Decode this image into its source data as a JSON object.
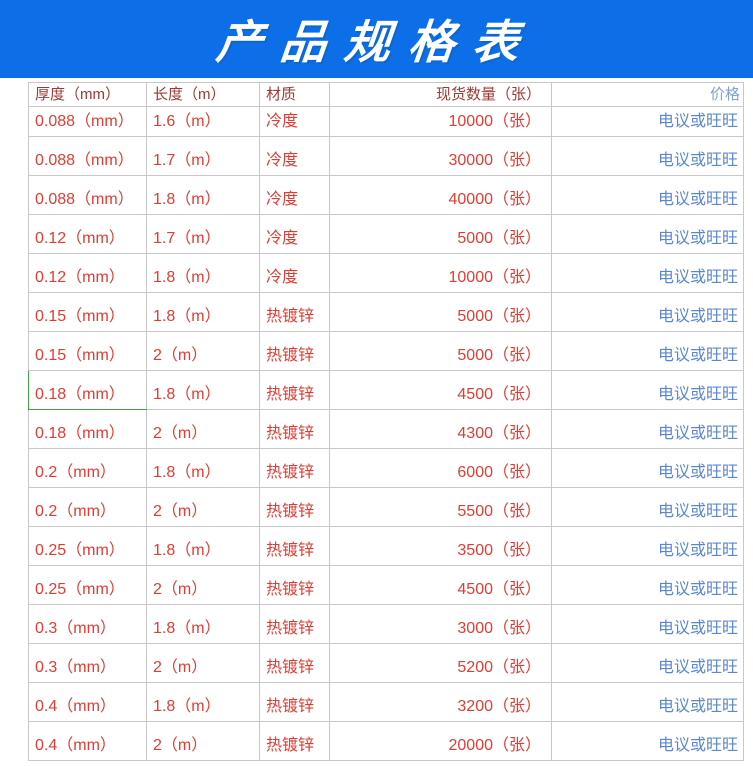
{
  "banner": {
    "title": "产品规格表",
    "bg_color": "#0d6fe8",
    "text_color": "#ffffff"
  },
  "table": {
    "columns": [
      {
        "key": "thickness",
        "label": "厚度（mm）"
      },
      {
        "key": "length",
        "label": "长度（m）"
      },
      {
        "key": "material",
        "label": "材质"
      },
      {
        "key": "quantity",
        "label": "现货数量（张）"
      },
      {
        "key": "price",
        "label": "价格"
      }
    ],
    "rows": [
      {
        "thickness": "0.088（mm）",
        "length": "1.6（m）",
        "material": "冷度",
        "quantity": "10000（张）",
        "price": "电议或旺旺"
      },
      {
        "thickness": "0.088（mm）",
        "length": "1.7（m）",
        "material": "冷度",
        "quantity": "30000（张）",
        "price": "电议或旺旺"
      },
      {
        "thickness": "0.088（mm）",
        "length": "1.8（m）",
        "material": "冷度",
        "quantity": "40000（张）",
        "price": "电议或旺旺"
      },
      {
        "thickness": "0.12（mm）",
        "length": "1.7（m）",
        "material": "冷度",
        "quantity": "5000（张）",
        "price": "电议或旺旺"
      },
      {
        "thickness": "0.12（mm）",
        "length": "1.8（m）",
        "material": "冷度",
        "quantity": "10000（张）",
        "price": "电议或旺旺"
      },
      {
        "thickness": "0.15（mm）",
        "length": "1.8（m）",
        "material": "热镀锌",
        "quantity": "5000（张）",
        "price": "电议或旺旺"
      },
      {
        "thickness": "0.15（mm）",
        "length": "2（m）",
        "material": "热镀锌",
        "quantity": "5000（张）",
        "price": "电议或旺旺"
      },
      {
        "thickness": "0.18（mm）",
        "length": "1.8（m）",
        "material": "热镀锌",
        "quantity": "4500（张）",
        "price": "电议或旺旺"
      },
      {
        "thickness": "0.18（mm）",
        "length": "2（m）",
        "material": "热镀锌",
        "quantity": "4300（张）",
        "price": "电议或旺旺"
      },
      {
        "thickness": "0.2（mm）",
        "length": "1.8（m）",
        "material": "热镀锌",
        "quantity": "6000（张）",
        "price": "电议或旺旺"
      },
      {
        "thickness": "0.2（mm）",
        "length": "2（m）",
        "material": "热镀锌",
        "quantity": "5500（张）",
        "price": "电议或旺旺"
      },
      {
        "thickness": "0.25（mm）",
        "length": "1.8（m）",
        "material": "热镀锌",
        "quantity": "3500（张）",
        "price": "电议或旺旺"
      },
      {
        "thickness": "0.25（mm）",
        "length": "2（m）",
        "material": "热镀锌",
        "quantity": "4500（张）",
        "price": "电议或旺旺"
      },
      {
        "thickness": "0.3（mm）",
        "length": "1.8（m）",
        "material": "热镀锌",
        "quantity": "3000（张）",
        "price": "电议或旺旺"
      },
      {
        "thickness": "0.3（mm）",
        "length": "2（m）",
        "material": "热镀锌",
        "quantity": "5200（张）",
        "price": "电议或旺旺"
      },
      {
        "thickness": "0.4（mm）",
        "length": "1.8（m）",
        "material": "热镀锌",
        "quantity": "3200（张）",
        "price": "电议或旺旺"
      },
      {
        "thickness": "0.4（mm）",
        "length": "2（m）",
        "material": "热镀锌",
        "quantity": "20000（张）",
        "price": "电议或旺旺"
      }
    ],
    "highlight_cell": {
      "row_index": 7,
      "column": "thickness",
      "border_color": "#3ca53c"
    }
  },
  "colors": {
    "banner_bg": "#0d6fe8",
    "header_text": "#9a3a36",
    "price_header_text": "#7fa3d8",
    "data_text": "#e13c33",
    "price_link_text": "#5b87d2",
    "grid_border": "#c8c8c8"
  }
}
